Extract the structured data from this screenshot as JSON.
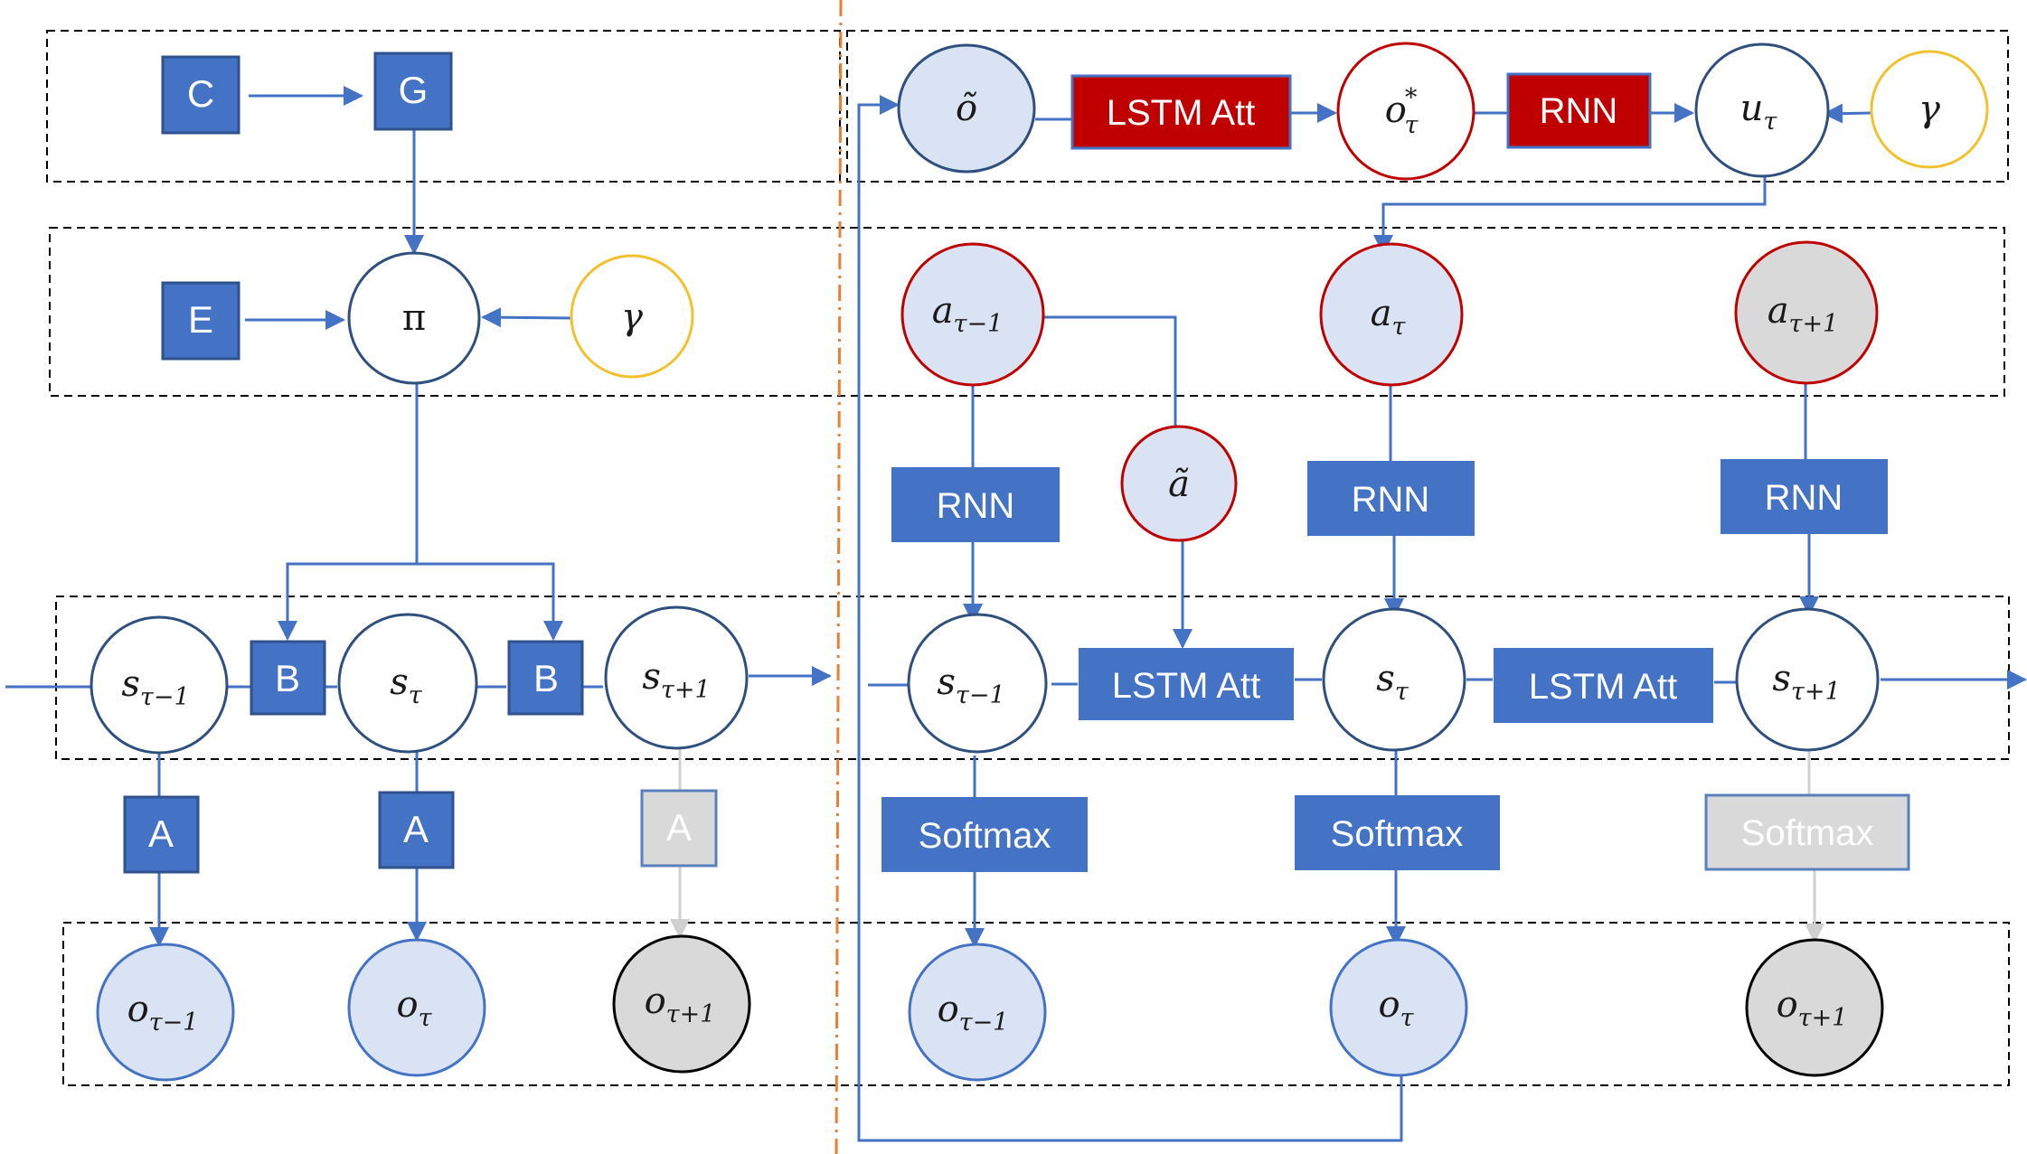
{
  "colors": {
    "blue": "#4472c4",
    "dark_red": "#c00000",
    "light_blue_fill": "#dae3f3",
    "gray_fill": "#d9d9d9",
    "gold": "#f2c12e",
    "orange_divider": "#ed7d31",
    "dark_node_stroke": "#2f4f7f"
  },
  "left_model": {
    "squares": {
      "c": "C",
      "g": "G",
      "e": "E",
      "b1": "B",
      "b2": "B",
      "a1": "A",
      "a2": "A",
      "a3": "A"
    },
    "pi": "π",
    "gamma": "γ",
    "states": [
      {
        "base": "s",
        "sub": "τ−1"
      },
      {
        "base": "s",
        "sub": "τ"
      },
      {
        "base": "s",
        "sub": "τ+1"
      }
    ],
    "observations": [
      {
        "base": "o",
        "sub": "τ−1"
      },
      {
        "base": "o",
        "sub": "τ"
      },
      {
        "base": "o",
        "sub": "τ+1"
      }
    ]
  },
  "right_model": {
    "o_tilde": "õ",
    "lstm_att_top": "LSTM Att",
    "o_star": {
      "base": "o",
      "sub": "τ",
      "sup": "*"
    },
    "rnn_top": "RNN",
    "u": {
      "base": "u",
      "sub": "τ"
    },
    "gamma": "γ",
    "actions": [
      {
        "base": "a",
        "sub": "τ−1"
      },
      {
        "base": "a",
        "sub": "τ"
      },
      {
        "base": "a",
        "sub": "τ+1"
      }
    ],
    "a_tilde": "ã",
    "rnn_boxes": [
      "RNN",
      "RNN",
      "RNN"
    ],
    "lstm_att_mid": [
      "LSTM Att",
      "LSTM Att"
    ],
    "states": [
      {
        "base": "s",
        "sub": "τ−1"
      },
      {
        "base": "s",
        "sub": "τ"
      },
      {
        "base": "s",
        "sub": "τ+1"
      }
    ],
    "softmax": [
      "Softmax",
      "Softmax",
      "Softmax"
    ],
    "observations": [
      {
        "base": "o",
        "sub": "τ−1"
      },
      {
        "base": "o",
        "sub": "τ"
      },
      {
        "base": "o",
        "sub": "τ+1"
      }
    ]
  }
}
